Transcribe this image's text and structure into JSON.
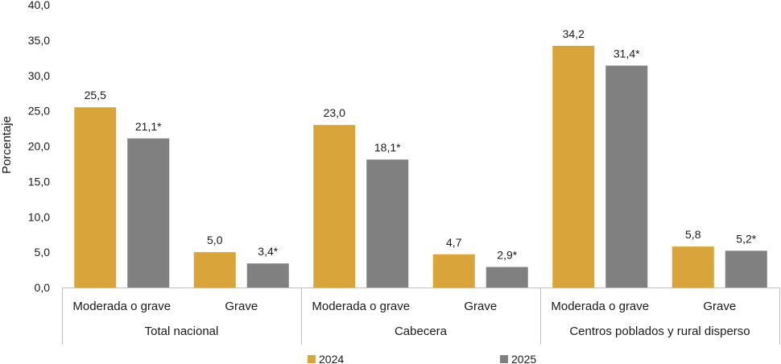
{
  "chart_data": {
    "type": "bar",
    "ylabel": "Porcentaje",
    "ylim": [
      0,
      40
    ],
    "yticks": [
      "0,0",
      "5,0",
      "10,0",
      "15,0",
      "20,0",
      "25,0",
      "30,0",
      "35,0",
      "40,0"
    ],
    "grid": false,
    "legend_position": "bottom",
    "groups": [
      {
        "name": "Total nacional",
        "subcategories": [
          "Moderada o grave",
          "Grave"
        ],
        "series_values": {
          "2024": [
            25.5,
            5.0
          ],
          "2025": [
            21.1,
            3.4
          ]
        },
        "labels": {
          "2024": [
            "25,5",
            "5,0"
          ],
          "2025": [
            "21,1*",
            "3,4*"
          ]
        }
      },
      {
        "name": "Cabecera",
        "subcategories": [
          "Moderada o grave",
          "Grave"
        ],
        "series_values": {
          "2024": [
            23.0,
            4.7
          ],
          "2025": [
            18.1,
            2.9
          ]
        },
        "labels": {
          "2024": [
            "23,0",
            "4,7"
          ],
          "2025": [
            "18,1*",
            "2,9*"
          ]
        }
      },
      {
        "name": "Centros poblados y rural disperso",
        "subcategories": [
          "Moderada o grave",
          "Grave"
        ],
        "series_values": {
          "2024": [
            34.2,
            5.8
          ],
          "2025": [
            31.4,
            5.2
          ]
        },
        "labels": {
          "2024": [
            "34,2",
            "5,8"
          ],
          "2025": [
            "31,4*",
            "5,2*"
          ]
        }
      }
    ],
    "series": [
      {
        "name": "2024",
        "color": "#D9A53A"
      },
      {
        "name": "2025",
        "color": "#808080"
      }
    ]
  }
}
